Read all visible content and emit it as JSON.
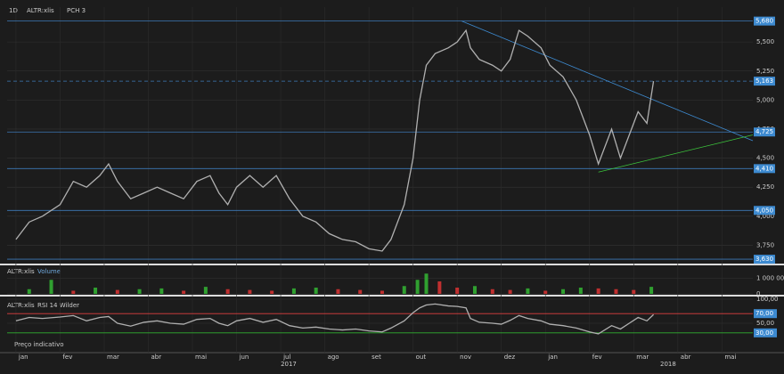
{
  "chart_data": [
    {
      "type": "line",
      "interval": "1D",
      "title": "ALTR:xlis",
      "indicator": "PCH 3",
      "color": "#b0b0b0",
      "x": [
        0,
        0.3,
        0.6,
        1.0,
        1.3,
        1.6,
        1.9,
        2.1,
        2.3,
        2.6,
        2.9,
        3.2,
        3.5,
        3.8,
        4.1,
        4.4,
        4.6,
        4.8,
        5.0,
        5.3,
        5.6,
        5.9,
        6.2,
        6.5,
        6.8,
        7.1,
        7.4,
        7.7,
        8.0,
        8.3,
        8.5,
        8.8,
        9.0,
        9.15,
        9.3,
        9.5,
        9.8,
        10.0,
        10.2,
        10.3,
        10.5,
        10.8,
        11.0,
        11.2,
        11.4,
        11.6,
        11.9,
        12.1,
        12.4,
        12.7,
        13.0,
        13.2,
        13.5,
        13.7,
        13.9,
        14.1,
        14.3,
        14.45
      ],
      "values": [
        3800,
        3950,
        4000,
        4100,
        4300,
        4250,
        4350,
        4450,
        4300,
        4150,
        4200,
        4250,
        4200,
        4150,
        4300,
        4350,
        4200,
        4100,
        4250,
        4350,
        4250,
        4350,
        4150,
        4000,
        3950,
        3850,
        3800,
        3780,
        3720,
        3700,
        3800,
        4100,
        4500,
        5000,
        5300,
        5400,
        5450,
        5500,
        5600,
        5450,
        5350,
        5300,
        5250,
        5350,
        5600,
        5550,
        5450,
        5300,
        5200,
        5000,
        4700,
        4450,
        4750,
        4500,
        4700,
        4900,
        4800,
        5163
      ],
      "levels": [
        {
          "value": 5680,
          "label": "5,680"
        },
        {
          "value": 5163,
          "label": "5,163"
        },
        {
          "value": 4725,
          "label": "4,725"
        },
        {
          "value": 4410,
          "label": "4,410"
        },
        {
          "value": 4050,
          "label": "4,050"
        },
        {
          "value": 3630,
          "label": "3,630"
        }
      ],
      "trendlines": [
        {
          "color": "#3d8ad0",
          "x": [
            10.1,
            16.7
          ],
          "values": [
            5680,
            4650
          ]
        },
        {
          "color": "#3cc43c",
          "x": [
            13.2,
            16.7
          ],
          "values": [
            4380,
            4700
          ]
        }
      ],
      "ylim": [
        3600,
        5800
      ],
      "yticks": [
        {
          "value": 3750,
          "label": "3,750"
        },
        {
          "value": 4000,
          "label": "4,000"
        },
        {
          "value": 4250,
          "label": "4,250"
        },
        {
          "value": 4500,
          "label": "4,500"
        },
        {
          "value": 4750,
          "label": "4,750"
        },
        {
          "value": 5000,
          "label": "5,000"
        },
        {
          "value": 5250,
          "label": "5,250"
        },
        {
          "value": 5500,
          "label": "5,500"
        }
      ]
    },
    {
      "type": "bar",
      "title": "ALTR:xlis",
      "series_name": "Volume",
      "x": [
        0.3,
        0.8,
        1.3,
        1.8,
        2.3,
        2.8,
        3.3,
        3.8,
        4.3,
        4.8,
        5.3,
        5.8,
        6.3,
        6.8,
        7.3,
        7.8,
        8.3,
        8.8,
        9.1,
        9.3,
        9.6,
        10.0,
        10.4,
        10.8,
        11.2,
        11.6,
        12.0,
        12.4,
        12.8,
        13.2,
        13.6,
        14.0,
        14.4
      ],
      "values": [
        300000,
        900000,
        200000,
        400000,
        250000,
        300000,
        350000,
        200000,
        450000,
        300000,
        250000,
        200000,
        350000,
        400000,
        300000,
        250000,
        200000,
        500000,
        900000,
        1300000,
        800000,
        400000,
        500000,
        300000,
        250000,
        350000,
        200000,
        300000,
        400000,
        350000,
        300000,
        250000,
        450000
      ],
      "ylim": [
        0,
        1600000
      ],
      "yticks": [
        0,
        {
          "value": 1000000,
          "label": "1 000 000"
        }
      ]
    },
    {
      "type": "line",
      "title": "ALTR:xlis",
      "subtitle": "RSI 14 Wilder",
      "note": "Preço indicativo",
      "color": "#b0b0b0",
      "values": [
        55,
        62,
        60,
        63,
        66,
        55,
        62,
        64,
        50,
        44,
        52,
        55,
        50,
        48,
        58,
        60,
        50,
        45,
        55,
        60,
        52,
        58,
        45,
        40,
        42,
        38,
        36,
        38,
        34,
        32,
        40,
        55,
        72,
        82,
        88,
        90,
        86,
        85,
        82,
        60,
        52,
        50,
        48,
        56,
        66,
        60,
        55,
        48,
        45,
        40,
        32,
        28,
        45,
        38,
        50,
        62,
        55,
        68
      ],
      "levels": [
        {
          "value": 70,
          "label": "70,00",
          "color": "#e04040"
        },
        {
          "value": 30,
          "label": "30,00",
          "color": "#30b030"
        }
      ],
      "ylim": [
        0,
        100
      ],
      "yticks": [
        {
          "value": 100,
          "label": "100,00"
        },
        {
          "value": 50,
          "label": "50,00"
        }
      ],
      "xlim": [
        -0.2,
        16.7
      ],
      "xticks": [
        {
          "value": 0,
          "label": "jan"
        },
        {
          "value": 1,
          "label": "fev"
        },
        {
          "value": 2,
          "label": "mar"
        },
        {
          "value": 3,
          "label": "abr"
        },
        {
          "value": 4,
          "label": "mai"
        },
        {
          "value": 5,
          "label": "jun"
        },
        {
          "value": 6,
          "label": "jul"
        },
        {
          "value": 7,
          "label": "ago"
        },
        {
          "value": 8,
          "label": "set"
        },
        {
          "value": 9,
          "label": "out"
        },
        {
          "value": 10,
          "label": "nov"
        },
        {
          "value": 11,
          "label": "dez"
        },
        {
          "value": 12,
          "label": "jan"
        },
        {
          "value": 13,
          "label": "fev"
        },
        {
          "value": 14,
          "label": "mar"
        },
        {
          "value": 15,
          "label": "abr"
        },
        {
          "value": 16,
          "label": "mai"
        }
      ],
      "year_labels": [
        {
          "value": 6,
          "label": "2017"
        },
        {
          "value": 14.6,
          "label": "2018"
        }
      ]
    }
  ]
}
